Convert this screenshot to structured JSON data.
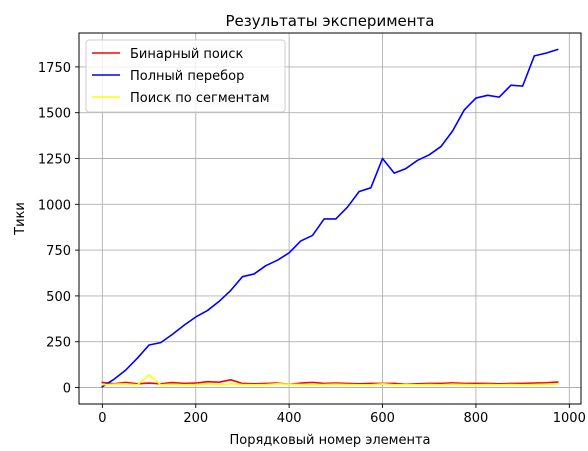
{
  "chart_data": {
    "type": "line",
    "title": "Результаты эксперимента",
    "xlabel": "Порядковый номер элемента",
    "ylabel": "Тики",
    "xlim": [
      -50,
      1025
    ],
    "ylim": [
      -90,
      1935
    ],
    "xticks": [
      0,
      200,
      400,
      600,
      800,
      1000
    ],
    "yticks": [
      0,
      250,
      500,
      750,
      1000,
      1250,
      1500,
      1750
    ],
    "grid": true,
    "legend_position": "top-left",
    "x": [
      0,
      25,
      50,
      75,
      100,
      125,
      150,
      175,
      200,
      225,
      250,
      275,
      300,
      325,
      350,
      375,
      400,
      425,
      450,
      475,
      500,
      525,
      550,
      575,
      600,
      625,
      650,
      675,
      700,
      725,
      750,
      775,
      800,
      825,
      850,
      875,
      900,
      925,
      950,
      975
    ],
    "series": [
      {
        "name": "Бинарный поиск",
        "color": "#ff0000",
        "values": [
          28,
          20,
          28,
          20,
          24,
          20,
          27,
          22,
          24,
          32,
          29,
          42,
          22,
          20,
          22,
          24,
          18,
          24,
          28,
          22,
          24,
          22,
          20,
          22,
          22,
          22,
          18,
          20,
          22,
          22,
          25,
          22,
          22,
          22,
          20,
          22,
          22,
          24,
          26,
          30
        ]
      },
      {
        "name": "Полный перебор",
        "color": "#0000ff",
        "values": [
          5,
          45,
          95,
          160,
          232,
          245,
          290,
          340,
          385,
          420,
          470,
          530,
          605,
          620,
          665,
          695,
          735,
          800,
          830,
          920,
          920,
          985,
          1070,
          1090,
          1250,
          1170,
          1195,
          1240,
          1270,
          1315,
          1400,
          1515,
          1580,
          1595,
          1585,
          1650,
          1645,
          1810,
          1825,
          1845
        ]
      },
      {
        "name": "Поиск по сегментам",
        "color": "#ffff00",
        "values": [
          15,
          18,
          20,
          15,
          68,
          15,
          18,
          15,
          16,
          20,
          15,
          20,
          16,
          15,
          16,
          20,
          18,
          16,
          15,
          16,
          18,
          16,
          15,
          15,
          20,
          15,
          16,
          15,
          16,
          15,
          18,
          16,
          15,
          16,
          15,
          16,
          15,
          16,
          18,
          20
        ]
      }
    ]
  }
}
